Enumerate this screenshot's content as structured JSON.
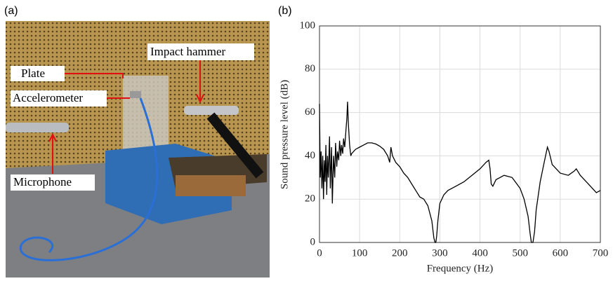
{
  "figure": {
    "panel_labels": [
      "(a)",
      "(b)"
    ],
    "photo_labels": [
      "Plate",
      "Accelerometer",
      "Impact hammer",
      "Microphone"
    ]
  },
  "chart_data": {
    "type": "line",
    "xlabel": "Frequency (Hz)",
    "ylabel": "Sound pressure level (dB)",
    "x": [
      0,
      2,
      4,
      6,
      8,
      10,
      12,
      14,
      16,
      18,
      20,
      22,
      25,
      27,
      30,
      32,
      35,
      38,
      40,
      43,
      45,
      48,
      50,
      53,
      55,
      58,
      60,
      63,
      66,
      68,
      70,
      72,
      75,
      78,
      80,
      90,
      100,
      110,
      120,
      130,
      140,
      150,
      160,
      170,
      175,
      178,
      182,
      190,
      200,
      210,
      220,
      230,
      240,
      250,
      260,
      270,
      280,
      285,
      288,
      290,
      292,
      295,
      300,
      310,
      320,
      340,
      360,
      380,
      400,
      415,
      422,
      425,
      428,
      432,
      440,
      460,
      480,
      500,
      510,
      520,
      525,
      528,
      532,
      536,
      540,
      550,
      560,
      568,
      572,
      580,
      600,
      620,
      635,
      640,
      650,
      670,
      690,
      700
    ],
    "values": [
      64,
      30,
      42,
      25,
      40,
      20,
      38,
      28,
      45,
      22,
      40,
      30,
      49,
      25,
      44,
      18,
      40,
      30,
      46,
      35,
      42,
      38,
      47,
      40,
      45,
      41,
      48,
      44,
      52,
      57,
      65,
      55,
      45,
      40,
      41,
      43,
      44,
      45,
      46,
      46,
      45.5,
      44.5,
      43,
      40,
      37,
      44,
      40,
      37,
      35,
      32,
      30,
      27,
      24,
      21,
      20,
      17,
      10,
      2,
      0,
      0,
      3,
      10,
      18,
      22,
      24,
      26,
      28,
      31,
      34,
      37,
      38,
      34,
      27,
      26,
      29,
      31,
      30,
      25,
      20,
      12,
      4,
      0,
      0,
      5,
      15,
      28,
      37,
      44,
      42,
      36,
      32,
      31,
      33,
      34,
      31,
      27,
      23,
      24
    ],
    "color": "#000000",
    "xlim": [
      0,
      700
    ],
    "ylim": [
      0,
      100
    ],
    "xticks": [
      0,
      100,
      200,
      300,
      400,
      500,
      600,
      700
    ],
    "yticks": [
      0,
      20,
      40,
      60,
      80,
      100
    ],
    "grid": true
  }
}
